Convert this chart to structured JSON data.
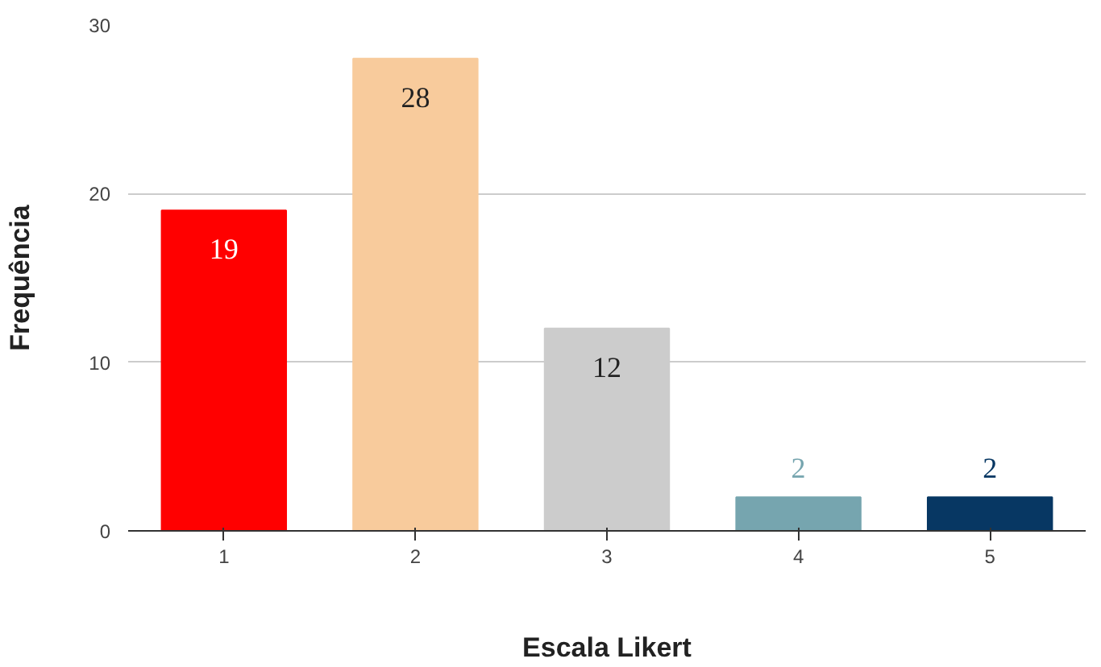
{
  "chart_data": {
    "type": "bar",
    "xlabel": "Escala Likert",
    "ylabel": "Frequência",
    "categories": [
      "1",
      "2",
      "3",
      "4",
      "5"
    ],
    "values": [
      19,
      28,
      12,
      2,
      2
    ],
    "colors": [
      "#ff0000",
      "#f8cb9c",
      "#cccccc",
      "#76a5af",
      "#073763"
    ],
    "ylim": [
      0,
      30
    ],
    "yticks": [
      0,
      10,
      20,
      30
    ],
    "grid": "y",
    "data_labels": true
  }
}
